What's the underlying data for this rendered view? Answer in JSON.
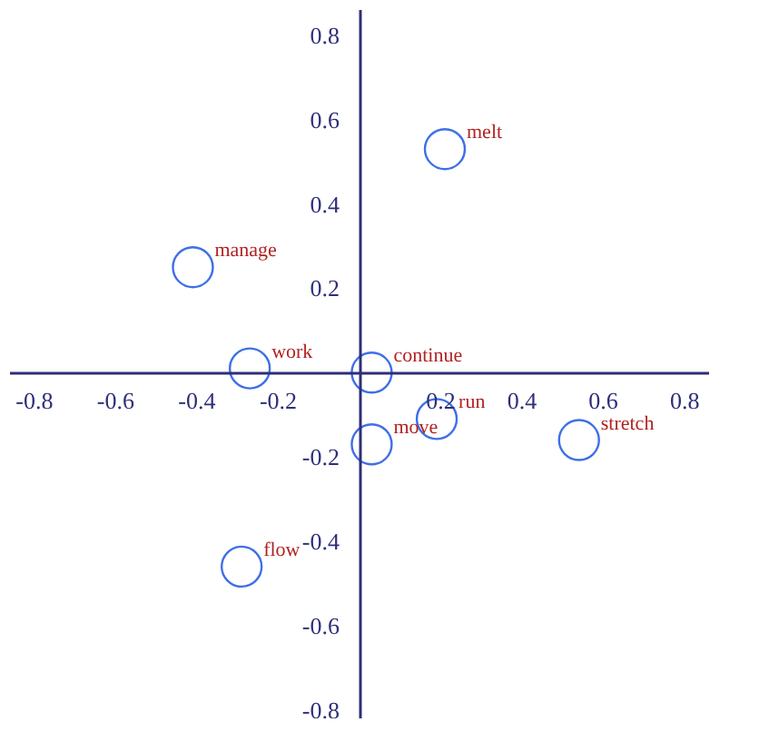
{
  "chart_data": {
    "type": "scatter",
    "series": [
      {
        "color": "#3f6fe8",
        "x": [
          0.21,
          -0.41,
          -0.27,
          0.03,
          0.19,
          0.03,
          0.54,
          -0.29
        ],
        "values": [
          0.53,
          0.25,
          0.01,
          0.0,
          -0.11,
          -0.17,
          -0.16,
          -0.46
        ],
        "value_labels": [
          "melt",
          "manage",
          "work",
          "continue",
          "run",
          "move",
          "stretch",
          "flow"
        ]
      }
    ],
    "xlim": [
      -0.86,
      0.86
    ],
    "ylim": [
      -0.82,
      0.86
    ],
    "xticks": [
      -0.8,
      -0.6,
      -0.4,
      -0.2,
      0.2,
      0.4,
      0.6,
      0.8
    ],
    "yticks": [
      -0.8,
      -0.6,
      -0.4,
      -0.2,
      0.2,
      0.4,
      0.6,
      0.8
    ],
    "marker": "circle",
    "grid": false
  }
}
